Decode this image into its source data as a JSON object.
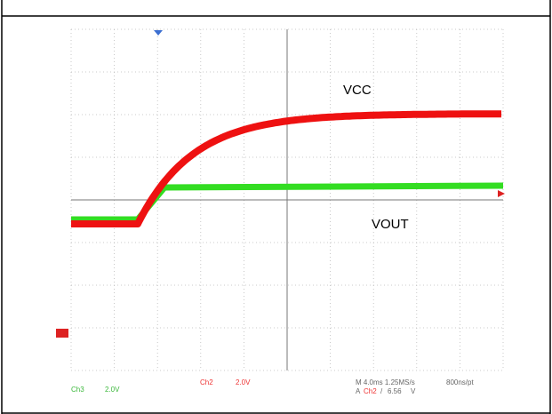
{
  "labels": {
    "vcc": "VCC",
    "vout": "VOUT"
  },
  "status": {
    "ch3": "Ch3",
    "ch3_scale": "2.0V",
    "ch2": "Ch2",
    "ch2_scale": "2.0V",
    "timebase": "M 4.0ms 1.25MS/s",
    "resolution": "800ns/pt",
    "trigger_mode": "A",
    "trigger_source": "Ch2",
    "trigger_slope": "/",
    "trigger_level": "6.56",
    "trigger_unit": "V"
  }
}
